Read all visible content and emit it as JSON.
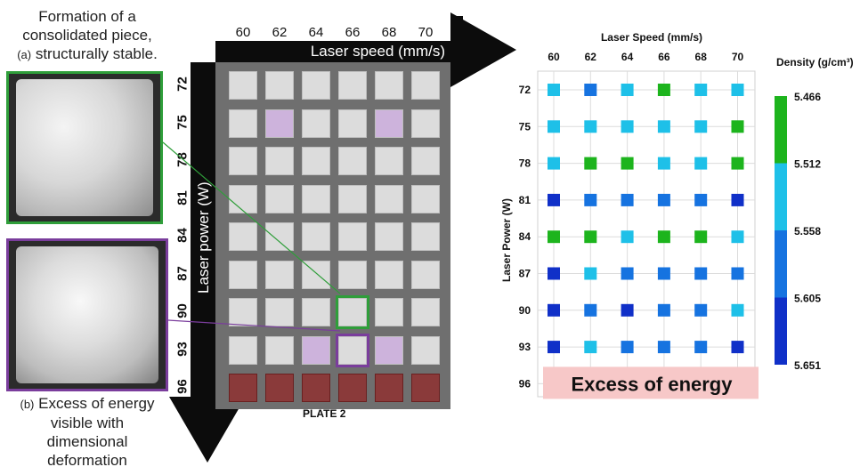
{
  "left_panel": {
    "caption_a_line1": "Formation of a",
    "caption_a_line2": "consolidated piece,",
    "caption_a_tag": "(a)",
    "caption_a_line3": "structurally stable.",
    "caption_b_tag": "(b)",
    "caption_b_line1": "Excess of energy",
    "caption_b_line2": "visible with",
    "caption_b_line3": "dimensional",
    "caption_b_line4": "deformation",
    "frame_a_color": "#2f9e3a",
    "frame_b_color": "#7a3d9c"
  },
  "plate": {
    "speed_ticks": [
      "60",
      "62",
      "64",
      "66",
      "68",
      "70"
    ],
    "speed_label": "Laser speed (mm/s)",
    "power_ticks": [
      "72",
      "75",
      "78",
      "81",
      "84",
      "87",
      "90",
      "93",
      "96"
    ],
    "power_label": "Laser power (W)",
    "plate_label": "PLATE 2"
  },
  "chart_data": {
    "type": "heatmap",
    "title": "",
    "xlabel": "Laser Speed (mm/s)",
    "ylabel": "Laser Power (W)",
    "x_ticks": [
      "60",
      "62",
      "64",
      "66",
      "68",
      "70"
    ],
    "y_ticks": [
      "72",
      "75",
      "78",
      "81",
      "84",
      "87",
      "90",
      "93",
      "96"
    ],
    "legend_title": "Density (g/cm³)",
    "legend_ticks": [
      "5.466",
      "5.512",
      "5.558",
      "5.605",
      "5.651"
    ],
    "legend_colors": [
      "#1db41d",
      "#1ec0e8",
      "#1673e0",
      "#1030c8"
    ],
    "class_values": [
      [
        1,
        2,
        1,
        0,
        1,
        1
      ],
      [
        1,
        1,
        1,
        1,
        1,
        0
      ],
      [
        1,
        0,
        0,
        1,
        1,
        0
      ],
      [
        3,
        2,
        2,
        2,
        2,
        3
      ],
      [
        0,
        0,
        1,
        0,
        0,
        1
      ],
      [
        3,
        1,
        2,
        2,
        2,
        2
      ],
      [
        3,
        2,
        3,
        2,
        2,
        1
      ],
      [
        3,
        1,
        2,
        2,
        2,
        3
      ]
    ],
    "excess_row": "96",
    "excess_label": "Excess of energy",
    "excess_color": "#f7c8c8"
  }
}
